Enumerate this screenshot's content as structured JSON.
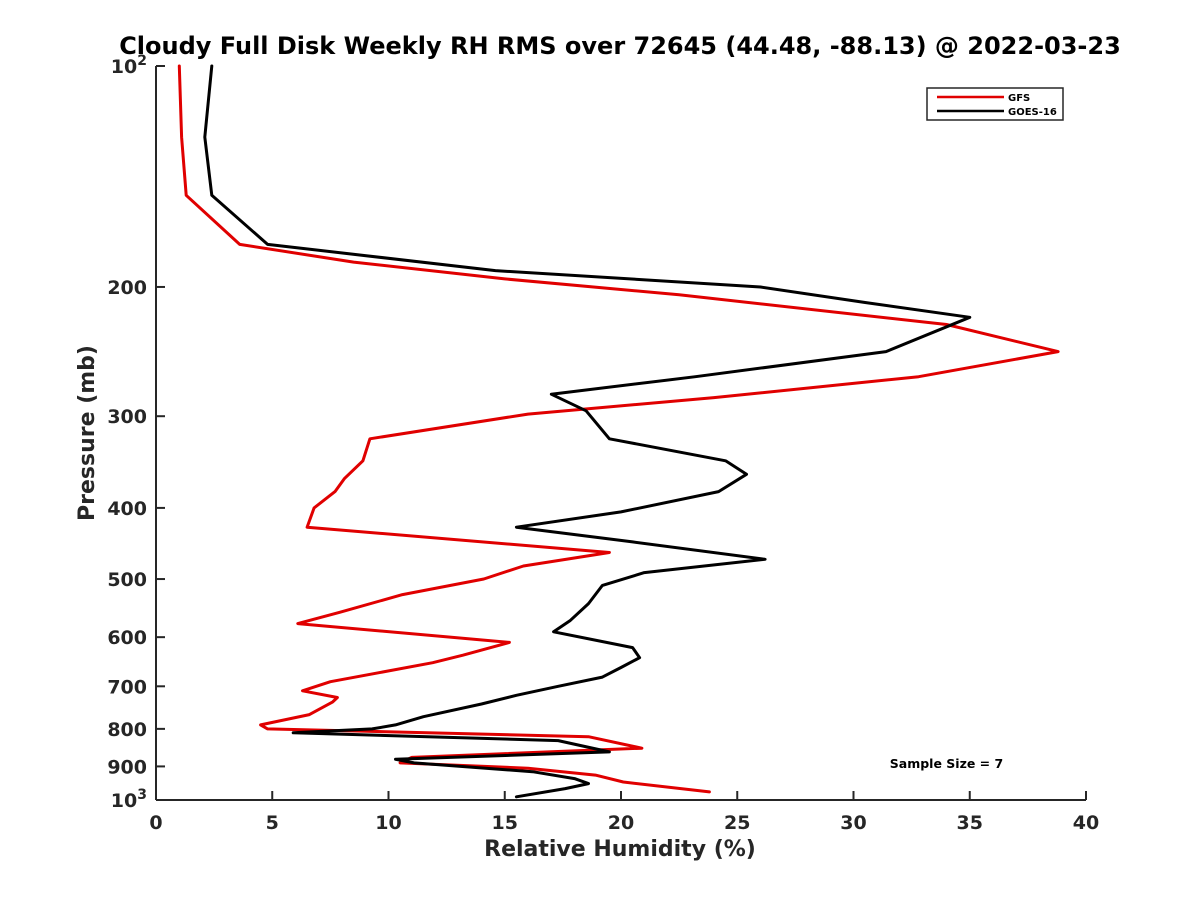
{
  "chart_data": {
    "type": "line",
    "title": "Cloudy Full Disk Weekly RH RMS over 72645 (44.48, -88.13) @ 2022-03-23",
    "xlabel": "Relative Humidity (%)",
    "ylabel": "Pressure (mb)",
    "xlim": [
      0,
      40
    ],
    "ylim": [
      100,
      1000
    ],
    "y_scale": "log",
    "y_reversed": true,
    "grid": false,
    "legend_position": "top-right",
    "x_ticks": [
      "0",
      "5",
      "10",
      "15",
      "20",
      "25",
      "30",
      "35",
      "40"
    ],
    "y_ticks": [
      {
        "value": 100,
        "base": "10",
        "exp": "2"
      },
      {
        "value": 200,
        "label": "200"
      },
      {
        "value": 300,
        "label": "300"
      },
      {
        "value": 400,
        "label": "400"
      },
      {
        "value": 500,
        "label": "500"
      },
      {
        "value": 600,
        "label": "600"
      },
      {
        "value": 700,
        "label": "700"
      },
      {
        "value": 800,
        "label": "800"
      },
      {
        "value": 900,
        "label": "900"
      },
      {
        "value": 1000,
        "base": "10",
        "exp": "3"
      }
    ],
    "series": [
      {
        "name": "GFS",
        "color": "#e00000",
        "points": [
          [
            1.0,
            100
          ],
          [
            1.1,
            125
          ],
          [
            1.3,
            150
          ],
          [
            3.6,
            175
          ],
          [
            8.5,
            185
          ],
          [
            15.0,
            195
          ],
          [
            22.5,
            205
          ],
          [
            34.0,
            225
          ],
          [
            38.8,
            245
          ],
          [
            32.8,
            265
          ],
          [
            24.0,
            283
          ],
          [
            16.0,
            298
          ],
          [
            9.2,
            322
          ],
          [
            8.9,
            345
          ],
          [
            8.1,
            365
          ],
          [
            7.7,
            380
          ],
          [
            6.8,
            400
          ],
          [
            6.5,
            425
          ],
          [
            19.5,
            460
          ],
          [
            15.8,
            480
          ],
          [
            14.1,
            500
          ],
          [
            10.6,
            525
          ],
          [
            7.9,
            555
          ],
          [
            6.1,
            575
          ],
          [
            15.2,
            610
          ],
          [
            13.2,
            635
          ],
          [
            11.9,
            650
          ],
          [
            7.5,
            690
          ],
          [
            6.3,
            710
          ],
          [
            7.8,
            725
          ],
          [
            7.6,
            735
          ],
          [
            6.6,
            765
          ],
          [
            4.5,
            790
          ],
          [
            4.8,
            800
          ],
          [
            18.6,
            820
          ],
          [
            20.9,
            850
          ],
          [
            11.0,
            875
          ],
          [
            10.5,
            890
          ],
          [
            16.0,
            905
          ],
          [
            18.9,
            925
          ],
          [
            20.1,
            945
          ],
          [
            23.8,
            975
          ]
        ]
      },
      {
        "name": "GOES-16",
        "color": "#000000",
        "points": [
          [
            2.4,
            100
          ],
          [
            2.1,
            125
          ],
          [
            2.4,
            150
          ],
          [
            4.8,
            175
          ],
          [
            14.6,
            190
          ],
          [
            26.0,
            200
          ],
          [
            30.5,
            210
          ],
          [
            35.0,
            220
          ],
          [
            31.4,
            245
          ],
          [
            23.2,
            265
          ],
          [
            17.0,
            280
          ],
          [
            18.5,
            295
          ],
          [
            19.5,
            322
          ],
          [
            24.5,
            345
          ],
          [
            25.4,
            360
          ],
          [
            24.2,
            380
          ],
          [
            20.0,
            405
          ],
          [
            15.5,
            425
          ],
          [
            20.5,
            445
          ],
          [
            26.2,
            470
          ],
          [
            21.0,
            490
          ],
          [
            19.2,
            510
          ],
          [
            18.6,
            540
          ],
          [
            17.8,
            570
          ],
          [
            17.1,
            590
          ],
          [
            20.5,
            620
          ],
          [
            20.8,
            640
          ],
          [
            20.0,
            660
          ],
          [
            19.2,
            680
          ],
          [
            17.3,
            700
          ],
          [
            15.5,
            720
          ],
          [
            14.0,
            740
          ],
          [
            11.5,
            770
          ],
          [
            10.3,
            790
          ],
          [
            9.3,
            800
          ],
          [
            5.9,
            810
          ],
          [
            17.3,
            830
          ],
          [
            19.5,
            860
          ],
          [
            10.3,
            880
          ],
          [
            11.1,
            890
          ],
          [
            16.2,
            915
          ],
          [
            18.0,
            935
          ],
          [
            18.6,
            950
          ],
          [
            17.6,
            965
          ],
          [
            15.5,
            990
          ]
        ]
      }
    ],
    "annotations": [
      {
        "text": "Sample Size = 7",
        "x": 34,
        "y": 910
      }
    ]
  }
}
